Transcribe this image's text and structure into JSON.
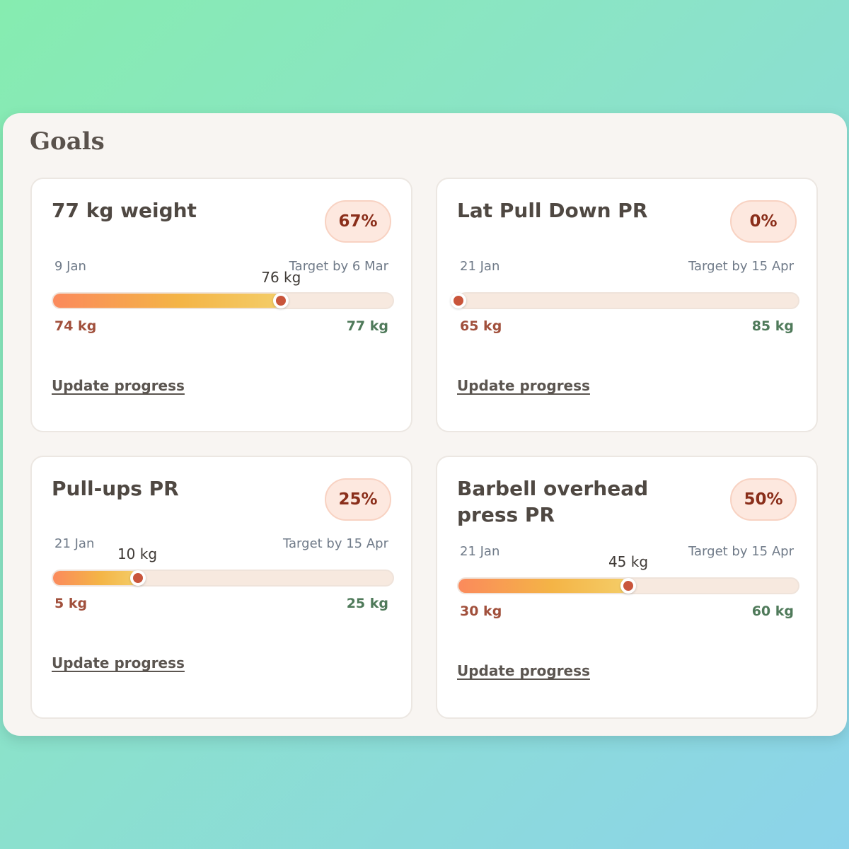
{
  "panel": {
    "title": "Goals"
  },
  "goals": [
    {
      "title": "77 kg weight",
      "percent_label": "67%",
      "progress": 0.67,
      "start_date": "9 Jan",
      "target_label": "Target by 6 Mar",
      "current_label": "76 kg",
      "min_label": "74 kg",
      "max_label": "77 kg",
      "update_label": "Update progress"
    },
    {
      "title": "Lat Pull Down PR",
      "percent_label": "0%",
      "progress": 0.0,
      "start_date": "21 Jan",
      "target_label": "Target by 15 Apr",
      "current_label": "",
      "min_label": "65 kg",
      "max_label": "85 kg",
      "update_label": "Update progress"
    },
    {
      "title": "Pull-ups PR",
      "percent_label": "25%",
      "progress": 0.25,
      "start_date": "21 Jan",
      "target_label": "Target by 15 Apr",
      "current_label": "10 kg",
      "min_label": "5 kg",
      "max_label": "25 kg",
      "update_label": "Update progress"
    },
    {
      "title": "Barbell overhead press PR",
      "percent_label": "50%",
      "progress": 0.5,
      "start_date": "21 Jan",
      "target_label": "Target by 15 Apr",
      "current_label": "45 kg",
      "min_label": "30 kg",
      "max_label": "60 kg",
      "update_label": "Update progress"
    }
  ],
  "colors": {
    "accent": "#c9553b",
    "fill_start": "#fb8a5c",
    "fill_end": "#f4cd68",
    "track": "#f7e9df",
    "min_text": "#a1503c",
    "max_text": "#4f7a5a"
  }
}
